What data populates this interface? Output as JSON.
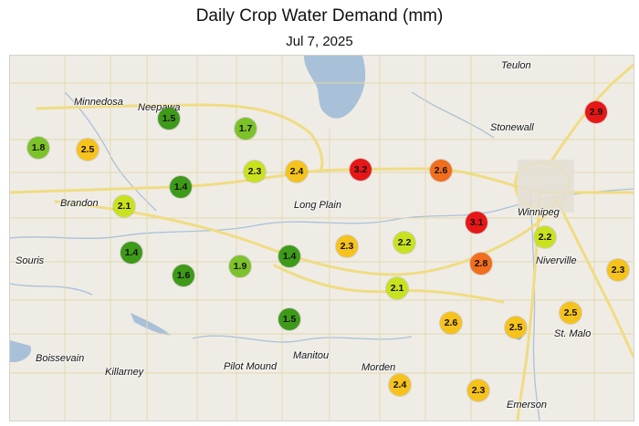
{
  "title": "Daily Crop Water Demand (mm)",
  "subtitle": "Jul 7, 2025",
  "colors": {
    "very_low": "#3e9a19",
    "low": "#7cc22a",
    "moderate_low": "#c9e21f",
    "moderate": "#f6c21c",
    "high": "#f26d1c",
    "very_high": "#e81717"
  },
  "towns": [
    {
      "name": "Teulon",
      "label": "Teulon"
    },
    {
      "name": "Minnedosa",
      "label": "Minnedosa"
    },
    {
      "name": "Neepawa",
      "label": "Neepawa"
    },
    {
      "name": "Stonewall",
      "label": "Stonewall"
    },
    {
      "name": "Winnipeg",
      "label": "Winnipeg"
    },
    {
      "name": "Brandon",
      "label": "Brandon"
    },
    {
      "name": "Long Plain",
      "label": "Long Plain"
    },
    {
      "name": "Souris",
      "label": "Souris"
    },
    {
      "name": "Niverville",
      "label": "Niverville"
    },
    {
      "name": "St. Malo",
      "label": "St. Malo"
    },
    {
      "name": "Boissevain",
      "label": "Boissevain"
    },
    {
      "name": "Killarney",
      "label": "Killarney"
    },
    {
      "name": "Pilot Mound",
      "label": "Pilot Mound"
    },
    {
      "name": "Manitou",
      "label": "Manitou"
    },
    {
      "name": "Morden",
      "label": "Morden"
    },
    {
      "name": "Emerson",
      "label": "Emerson"
    }
  ],
  "stations": [
    {
      "value": "1.8",
      "color": "#7cc22a"
    },
    {
      "value": "2.5",
      "color": "#f6c21c"
    },
    {
      "value": "1.5",
      "color": "#3e9a19"
    },
    {
      "value": "1.7",
      "color": "#7cc22a"
    },
    {
      "value": "2.3",
      "color": "#c9e21f"
    },
    {
      "value": "2.4",
      "color": "#f6c21c"
    },
    {
      "value": "3.2",
      "color": "#e81717"
    },
    {
      "value": "2.6",
      "color": "#f26d1c"
    },
    {
      "value": "2.9",
      "color": "#e81717"
    },
    {
      "value": "1.4",
      "color": "#3e9a19"
    },
    {
      "value": "2.1",
      "color": "#c9e21f"
    },
    {
      "value": "3.1",
      "color": "#e81717"
    },
    {
      "value": "1.4",
      "color": "#3e9a19"
    },
    {
      "value": "1.6",
      "color": "#3e9a19"
    },
    {
      "value": "1.9",
      "color": "#7cc22a"
    },
    {
      "value": "1.4",
      "color": "#3e9a19"
    },
    {
      "value": "2.3",
      "color": "#f6c21c"
    },
    {
      "value": "2.2",
      "color": "#c9e21f"
    },
    {
      "value": "2.2",
      "color": "#c9e21f"
    },
    {
      "value": "2.8",
      "color": "#f26d1c"
    },
    {
      "value": "2.3",
      "color": "#f6c21c"
    },
    {
      "value": "2.1",
      "color": "#c9e21f"
    },
    {
      "value": "1.5",
      "color": "#3e9a19"
    },
    {
      "value": "2.6",
      "color": "#f6c21c"
    },
    {
      "value": "2.5",
      "color": "#f6c21c"
    },
    {
      "value": "2.5",
      "color": "#f6c21c"
    },
    {
      "value": "2.4",
      "color": "#f6c21c"
    },
    {
      "value": "2.3",
      "color": "#f6c21c"
    }
  ]
}
